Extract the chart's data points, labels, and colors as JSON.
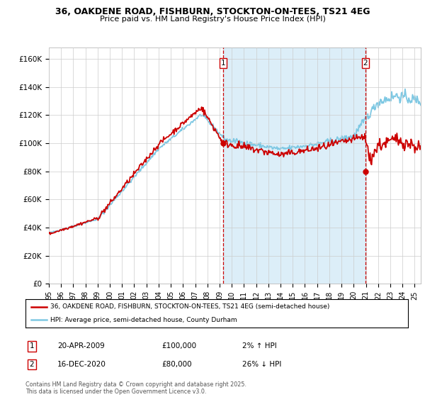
{
  "title_line1": "36, OAKDENE ROAD, FISHBURN, STOCKTON-ON-TEES, TS21 4EG",
  "title_line2": "Price paid vs. HM Land Registry's House Price Index (HPI)",
  "ylabel_ticks": [
    "£0",
    "£20K",
    "£40K",
    "£60K",
    "£80K",
    "£100K",
    "£120K",
    "£140K",
    "£160K"
  ],
  "ytick_values": [
    0,
    20000,
    40000,
    60000,
    80000,
    100000,
    120000,
    140000,
    160000
  ],
  "ylim": [
    0,
    168000
  ],
  "xlim_start": 1995.0,
  "xlim_end": 2025.5,
  "xticks": [
    1995,
    1996,
    1997,
    1998,
    1999,
    2000,
    2001,
    2002,
    2003,
    2004,
    2005,
    2006,
    2007,
    2008,
    2009,
    2010,
    2011,
    2012,
    2013,
    2014,
    2015,
    2016,
    2017,
    2018,
    2019,
    2020,
    2021,
    2022,
    2023,
    2024,
    2025
  ],
  "xtick_labels": [
    "95",
    "96",
    "97",
    "98",
    "99",
    "00",
    "01",
    "02",
    "03",
    "04",
    "05",
    "06",
    "07",
    "08",
    "09",
    "10",
    "11",
    "12",
    "13",
    "14",
    "15",
    "16",
    "17",
    "18",
    "19",
    "20",
    "21",
    "22",
    "23",
    "24",
    "25"
  ],
  "hpi_color": "#7ec8e3",
  "price_color": "#cc0000",
  "vline_color": "#cc0000",
  "shade_color": "#dceef8",
  "vline1_x": 2009.3,
  "vline2_x": 2020.96,
  "marker1_x": 2009.3,
  "marker1_y": 100000,
  "marker2_x": 2020.96,
  "marker2_y": 80000,
  "label1": "1",
  "label2": "2",
  "legend_price_label": "36, OAKDENE ROAD, FISHBURN, STOCKTON-ON-TEES, TS21 4EG (semi-detached house)",
  "legend_hpi_label": "HPI: Average price, semi-detached house, County Durham",
  "annotation1_date": "20-APR-2009",
  "annotation1_price": "£100,000",
  "annotation1_hpi": "2% ↑ HPI",
  "annotation2_date": "16-DEC-2020",
  "annotation2_price": "£80,000",
  "annotation2_hpi": "26% ↓ HPI",
  "footer": "Contains HM Land Registry data © Crown copyright and database right 2025.\nThis data is licensed under the Open Government Licence v3.0.",
  "bg_color": "#ffffff",
  "grid_color": "#cccccc"
}
